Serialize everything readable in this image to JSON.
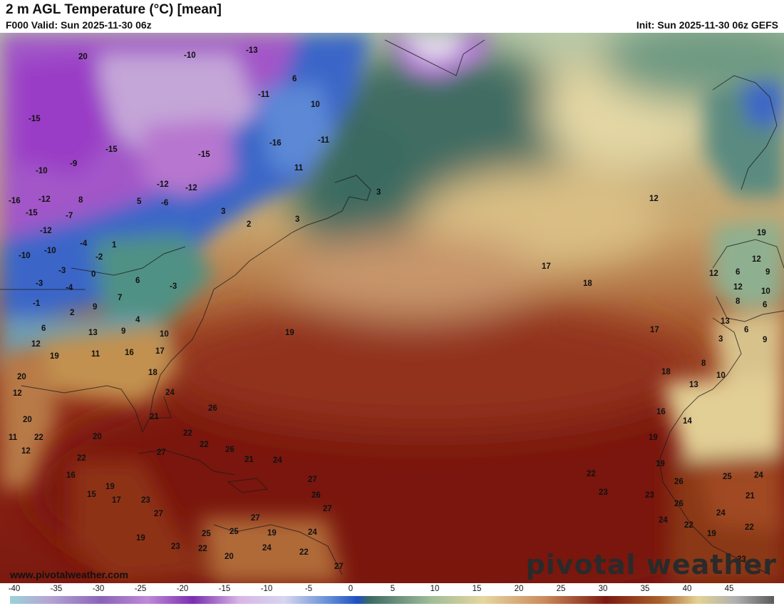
{
  "header": {
    "title": "2 m AGL Temperature (°C) [mean]",
    "valid": "F000 Valid: Sun 2025-11-30 06z",
    "init": "Init: Sun 2025-11-30 06z GEFS"
  },
  "footer": {
    "url": "www.pivotalweather.com",
    "brand": "pivotal weather"
  },
  "colorbar": {
    "ticks": [
      "-40",
      "-35",
      "-30",
      "-25",
      "-20",
      "-15",
      "-10",
      "-5",
      "0",
      "5",
      "10",
      "15",
      "20",
      "25",
      "30",
      "35",
      "40",
      "45"
    ]
  },
  "map_labels": [
    "20",
    "-10",
    "-13",
    "6",
    "-15",
    "-15",
    "-11",
    "10",
    "-16",
    "-11",
    "-15",
    "-10",
    "-9",
    "-12",
    "-12",
    "11",
    "3",
    "-16",
    "-12",
    "-15",
    "8",
    "5",
    "-6",
    "3",
    "-12",
    "-7",
    "-4",
    "3",
    "2",
    "-10",
    "-10",
    "-2",
    "1",
    "-3",
    "0",
    "6",
    "-3",
    "-4",
    "-3",
    "7",
    "-1",
    "2",
    "9",
    "4",
    "6",
    "13",
    "9",
    "10",
    "12",
    "19",
    "11",
    "16",
    "17",
    "18",
    "20",
    "12",
    "24",
    "26",
    "21",
    "22",
    "22",
    "20",
    "11",
    "22",
    "12",
    "22",
    "20",
    "27",
    "26",
    "21",
    "24",
    "16",
    "27",
    "19",
    "15",
    "17",
    "23",
    "27",
    "26",
    "27",
    "27",
    "25",
    "25",
    "19",
    "24",
    "23",
    "22",
    "19",
    "24",
    "22",
    "20",
    "27",
    "19",
    "17",
    "18",
    "12",
    "17",
    "18",
    "19",
    "12",
    "12",
    "6",
    "9",
    "6",
    "12",
    "10",
    "8",
    "13",
    "6",
    "3",
    "9",
    "8",
    "10",
    "13",
    "14",
    "16",
    "19",
    "19",
    "22",
    "23",
    "23",
    "26",
    "25",
    "24",
    "21",
    "24",
    "26",
    "24",
    "22",
    "19",
    "22",
    "23",
    "21"
  ]
}
